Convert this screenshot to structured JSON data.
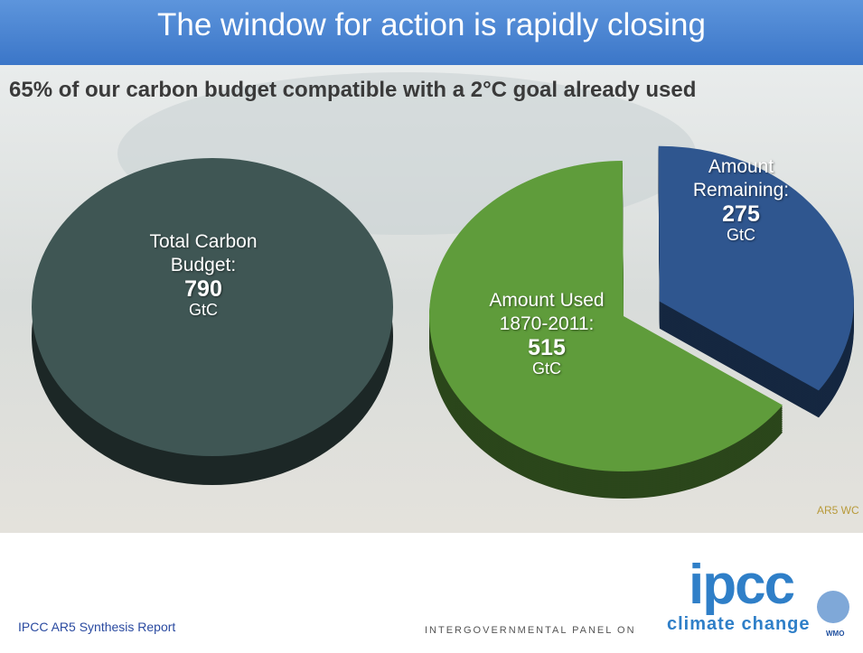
{
  "slide": {
    "title": "The window for action is rapidly closing",
    "subtitle": "65% of our carbon budget compatible with a 2°C goal already used",
    "source_note": "AR5 WC",
    "footer": "IPCC AR5 Synthesis Report",
    "logo": {
      "mark": "ipcc",
      "panel": "INTERGOVERNMENTAL PANEL ON",
      "climate": "climate change",
      "wmo": "WMO"
    }
  },
  "chart_data": [
    {
      "type": "pie",
      "categories": [
        "Total Carbon Budget:"
      ],
      "values": [
        790
      ],
      "unit": "GtC",
      "colors": [
        "#3f5654"
      ]
    },
    {
      "type": "pie",
      "categories": [
        "Amount Used 1870-2011:",
        "Amount Remaining:"
      ],
      "values": [
        515,
        275
      ],
      "unit": "GtC",
      "colors": [
        "#5f9c3b",
        "#2f568f"
      ]
    }
  ]
}
